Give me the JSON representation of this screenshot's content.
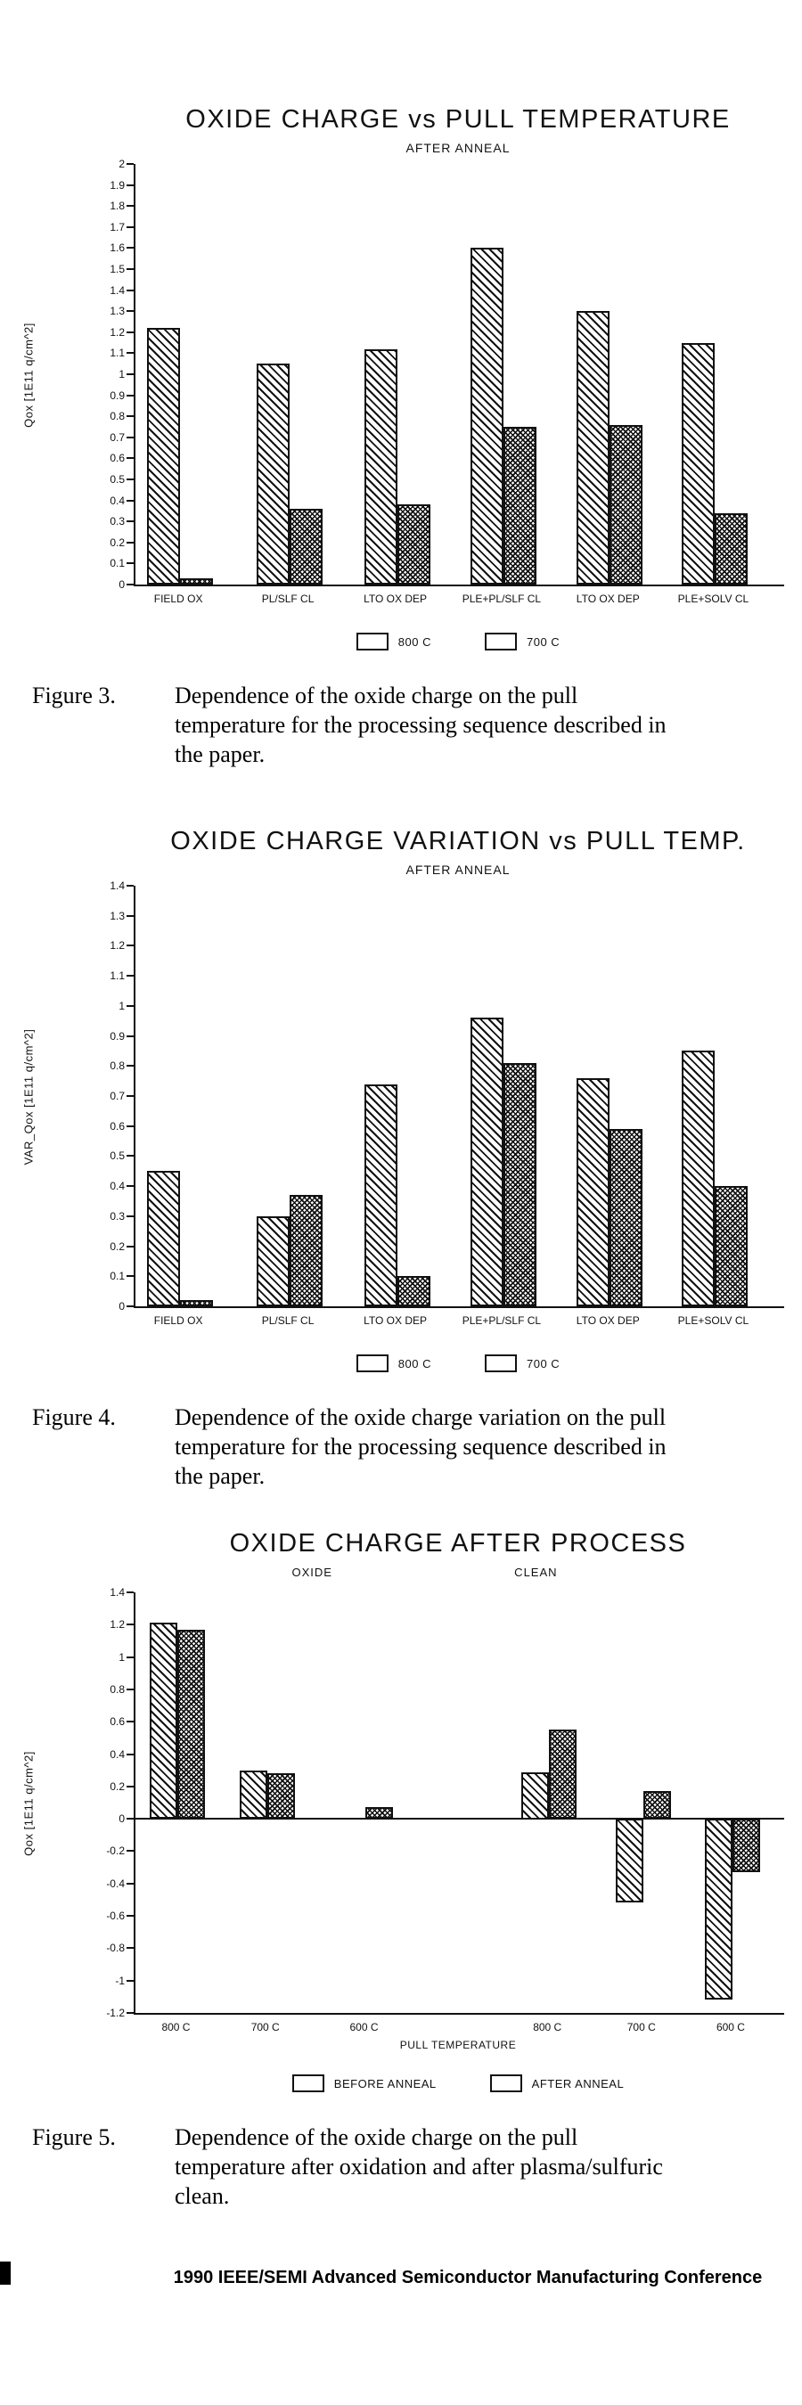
{
  "page": {
    "background": "#ffffff",
    "ink": "#111111",
    "footer": "1990 IEEE/SEMI Advanced Semiconductor Manufacturing Conference",
    "page_number_fragment": "0"
  },
  "figures": [
    {
      "caption_label": "Figure 3.",
      "caption_text": "Dependence of the oxide charge on the pull temperature for the processing sequence described in the paper."
    },
    {
      "caption_label": "Figure 4.",
      "caption_text": "Dependence of the oxide charge variation on the pull temperature for the processing sequence described in the paper."
    },
    {
      "caption_label": "Figure 5.",
      "caption_text": "Dependence of the oxide charge on the pull temperature after oxidation and after plasma/sulfuric clean."
    }
  ],
  "chart_data": [
    {
      "type": "bar",
      "title": "OXIDE CHARGE vs PULL TEMPERATURE",
      "subtitle": "AFTER ANNEAL",
      "ylabel": "Qox [1E11 q/cm^2]",
      "xlabel": "",
      "ylim": [
        0,
        2
      ],
      "ytick_step": 0.1,
      "grid": false,
      "legend_position": "bottom",
      "categories": [
        "FIELD OX",
        "PL/SLF CL",
        "LTO OX DEP",
        "PLE+PL/SLF CL",
        "LTO OX DEP",
        "PLE+SOLV CL"
      ],
      "series": [
        {
          "name": "800 C",
          "pattern": "diagonal-hatch",
          "values": [
            1.22,
            1.05,
            1.12,
            1.6,
            1.3,
            1.15
          ]
        },
        {
          "name": "700 C",
          "pattern": "crosshatch",
          "values": [
            0.03,
            0.36,
            0.38,
            0.75,
            0.76,
            0.34
          ]
        }
      ],
      "slot_positions": [
        0.42,
        1.45,
        2.46,
        3.46,
        4.46,
        5.45
      ],
      "slot_total": 6.1,
      "bar_frac": 0.31
    },
    {
      "type": "bar",
      "title": "OXIDE CHARGE VARIATION vs PULL TEMP.",
      "subtitle": "AFTER ANNEAL",
      "ylabel": "VAR_Qox [1E11 q/cm^2]",
      "xlabel": "",
      "ylim": [
        0,
        1.4
      ],
      "ytick_step": 0.1,
      "grid": false,
      "legend_position": "bottom",
      "categories": [
        "FIELD OX",
        "PL/SLF CL",
        "LTO OX DEP",
        "PLE+PL/SLF CL",
        "LTO OX DEP",
        "PLE+SOLV CL"
      ],
      "series": [
        {
          "name": "800 C",
          "pattern": "diagonal-hatch",
          "values": [
            0.45,
            0.3,
            0.74,
            0.96,
            0.76,
            0.85
          ]
        },
        {
          "name": "700 C",
          "pattern": "crosshatch",
          "values": [
            0.02,
            0.37,
            0.1,
            0.81,
            0.59,
            0.4
          ]
        }
      ],
      "slot_positions": [
        0.42,
        1.45,
        2.46,
        3.46,
        4.46,
        5.45
      ],
      "slot_total": 6.1,
      "bar_frac": 0.31
    },
    {
      "type": "bar",
      "title": "OXIDE CHARGE AFTER PROCESS",
      "group_labels": [
        "OXIDE",
        "CLEAN"
      ],
      "group_label_pos": [
        27.5,
        62
      ],
      "xlabel": "PULL TEMPERATURE",
      "ylabel": "Qox [1E11 q/cm^2]",
      "ylim": [
        -1.2,
        1.4
      ],
      "ytick_step": 0.2,
      "grid": false,
      "legend_position": "bottom",
      "categories": [
        "800 C",
        "700 C",
        "600 C",
        "800 C",
        "700 C",
        "600 C"
      ],
      "series": [
        {
          "name": "BEFORE ANNEAL",
          "pattern": "diagonal-hatch",
          "values": [
            1.21,
            0.3,
            0,
            0.29,
            -0.52,
            -1.12
          ]
        },
        {
          "name": "AFTER ANNEAL",
          "pattern": "crosshatch",
          "values": [
            1.17,
            0.28,
            0.07,
            0.55,
            0.17,
            -0.33
          ]
        }
      ],
      "slot_positions": [
        0.45,
        1.4,
        2.45,
        4.4,
        5.4,
        6.35
      ],
      "slot_total": 6.9,
      "bar_frac": 0.29
    }
  ]
}
